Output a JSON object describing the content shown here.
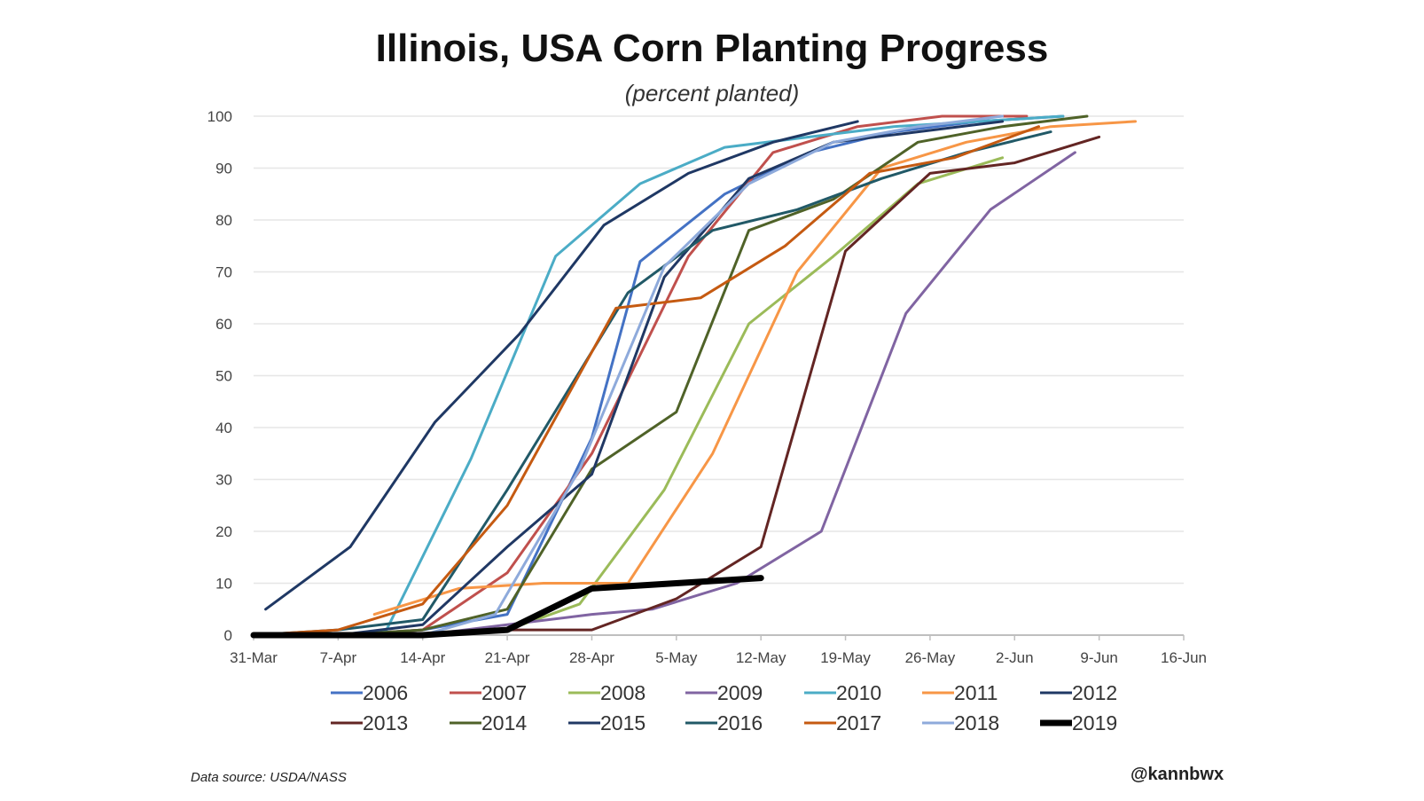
{
  "chart_data": {
    "type": "line",
    "title": "Illinois, USA Corn Planting Progress",
    "subtitle": "(percent planted)",
    "xlabel": "",
    "ylabel": "",
    "x_ticks": [
      "31-Mar",
      "7-Apr",
      "14-Apr",
      "21-Apr",
      "28-Apr",
      "5-May",
      "12-May",
      "19-May",
      "26-May",
      "2-Jun",
      "9-Jun",
      "16-Jun"
    ],
    "xlim": [
      "31-Mar",
      "16-Jun"
    ],
    "ylim": [
      0,
      100
    ],
    "y_ticks": [
      0,
      10,
      20,
      30,
      40,
      50,
      60,
      70,
      80,
      90,
      100
    ],
    "grid": "horizontal",
    "legend_position": "bottom",
    "series": [
      {
        "name": "2006",
        "color": "#4472c4",
        "width": 3,
        "points": [
          [
            "31-Mar",
            0
          ],
          [
            "7-Apr",
            0
          ],
          [
            "14-Apr",
            1
          ],
          [
            "21-Apr",
            4
          ],
          [
            "28-Apr",
            38
          ],
          [
            "2-May",
            72
          ],
          [
            "9-May",
            85
          ],
          [
            "16-May",
            93
          ],
          [
            "23-May",
            97
          ],
          [
            "30-May",
            99
          ],
          [
            "6-Jun",
            100
          ]
        ]
      },
      {
        "name": "2007",
        "color": "#c0504d",
        "width": 3,
        "points": [
          [
            "31-Mar",
            0
          ],
          [
            "7-Apr",
            0
          ],
          [
            "14-Apr",
            1
          ],
          [
            "21-Apr",
            12
          ],
          [
            "28-Apr",
            35
          ],
          [
            "6-May",
            73
          ],
          [
            "13-May",
            93
          ],
          [
            "20-May",
            98
          ],
          [
            "27-May",
            100
          ],
          [
            "3-Jun",
            100
          ]
        ]
      },
      {
        "name": "2008",
        "color": "#9bbb59",
        "width": 3,
        "points": [
          [
            "31-Mar",
            0
          ],
          [
            "7-Apr",
            0
          ],
          [
            "14-Apr",
            0
          ],
          [
            "21-Apr",
            1
          ],
          [
            "27-Apr",
            6
          ],
          [
            "4-May",
            28
          ],
          [
            "11-May",
            60
          ],
          [
            "18-May",
            73
          ],
          [
            "25-May",
            87
          ],
          [
            "1-Jun",
            92
          ]
        ]
      },
      {
        "name": "2009",
        "color": "#8064a2",
        "width": 3,
        "points": [
          [
            "31-Mar",
            0
          ],
          [
            "7-Apr",
            0
          ],
          [
            "14-Apr",
            0
          ],
          [
            "21-Apr",
            2
          ],
          [
            "28-Apr",
            4
          ],
          [
            "3-May",
            5
          ],
          [
            "10-May",
            10
          ],
          [
            "17-May",
            20
          ],
          [
            "24-May",
            62
          ],
          [
            "31-May",
            82
          ],
          [
            "7-Jun",
            93
          ]
        ]
      },
      {
        "name": "2010",
        "color": "#4bacc6",
        "width": 3,
        "points": [
          [
            "31-Mar",
            0
          ],
          [
            "7-Apr",
            0
          ],
          [
            "11-Apr",
            1
          ],
          [
            "18-Apr",
            34
          ],
          [
            "25-Apr",
            73
          ],
          [
            "2-May",
            87
          ],
          [
            "9-May",
            94
          ],
          [
            "16-May",
            96
          ],
          [
            "23-May",
            98
          ],
          [
            "30-May",
            99
          ],
          [
            "6-Jun",
            100
          ]
        ]
      },
      {
        "name": "2011",
        "color": "#f79646",
        "width": 3,
        "points": [
          [
            "10-Apr",
            4
          ],
          [
            "17-Apr",
            9
          ],
          [
            "24-Apr",
            10
          ],
          [
            "1-May",
            10
          ],
          [
            "8-May",
            35
          ],
          [
            "15-May",
            70
          ],
          [
            "22-May",
            90
          ],
          [
            "29-May",
            95
          ],
          [
            "5-Jun",
            98
          ],
          [
            "12-Jun",
            99
          ]
        ]
      },
      {
        "name": "2012",
        "color": "#1f3864",
        "width": 3,
        "points": [
          [
            "1-Apr",
            5
          ],
          [
            "8-Apr",
            17
          ],
          [
            "15-Apr",
            41
          ],
          [
            "22-Apr",
            58
          ],
          [
            "29-Apr",
            79
          ],
          [
            "6-May",
            89
          ],
          [
            "13-May",
            95
          ],
          [
            "20-May",
            99
          ]
        ]
      },
      {
        "name": "2013",
        "color": "#632523",
        "width": 3,
        "points": [
          [
            "31-Mar",
            0
          ],
          [
            "7-Apr",
            0
          ],
          [
            "14-Apr",
            0
          ],
          [
            "21-Apr",
            1
          ],
          [
            "28-Apr",
            1
          ],
          [
            "5-May",
            7
          ],
          [
            "12-May",
            17
          ],
          [
            "19-May",
            74
          ],
          [
            "26-May",
            89
          ],
          [
            "2-Jun",
            91
          ],
          [
            "9-Jun",
            96
          ]
        ]
      },
      {
        "name": "2014",
        "color": "#4f6228",
        "width": 3,
        "points": [
          [
            "31-Mar",
            0
          ],
          [
            "7-Apr",
            0
          ],
          [
            "14-Apr",
            1
          ],
          [
            "21-Apr",
            5
          ],
          [
            "28-Apr",
            32
          ],
          [
            "5-May",
            43
          ],
          [
            "11-May",
            78
          ],
          [
            "18-May",
            84
          ],
          [
            "25-May",
            95
          ],
          [
            "1-Jun",
            98
          ],
          [
            "8-Jun",
            100
          ]
        ]
      },
      {
        "name": "2015",
        "color": "#203864",
        "width": 3,
        "points": [
          [
            "31-Mar",
            0
          ],
          [
            "7-Apr",
            0
          ],
          [
            "14-Apr",
            2
          ],
          [
            "21-Apr",
            17
          ],
          [
            "28-Apr",
            31
          ],
          [
            "4-May",
            69
          ],
          [
            "11-May",
            88
          ],
          [
            "18-May",
            95
          ],
          [
            "25-May",
            97
          ],
          [
            "1-Jun",
            99
          ]
        ]
      },
      {
        "name": "2016",
        "color": "#215967",
        "width": 3,
        "points": [
          [
            "31-Mar",
            0
          ],
          [
            "7-Apr",
            1
          ],
          [
            "14-Apr",
            3
          ],
          [
            "21-Apr",
            28
          ],
          [
            "1-May",
            66
          ],
          [
            "8-May",
            78
          ],
          [
            "15-May",
            82
          ],
          [
            "22-May",
            88
          ],
          [
            "29-May",
            93
          ],
          [
            "5-Jun",
            97
          ]
        ]
      },
      {
        "name": "2017",
        "color": "#c55a11",
        "width": 3,
        "points": [
          [
            "31-Mar",
            0
          ],
          [
            "7-Apr",
            1
          ],
          [
            "14-Apr",
            6
          ],
          [
            "21-Apr",
            25
          ],
          [
            "30-Apr",
            63
          ],
          [
            "7-May",
            65
          ],
          [
            "14-May",
            75
          ],
          [
            "21-May",
            89
          ],
          [
            "28-May",
            92
          ],
          [
            "4-Jun",
            98
          ]
        ]
      },
      {
        "name": "2018",
        "color": "#8eaadb",
        "width": 3,
        "points": [
          [
            "31-Mar",
            0
          ],
          [
            "7-Apr",
            0
          ],
          [
            "14-Apr",
            0
          ],
          [
            "20-Apr",
            4
          ],
          [
            "27-Apr",
            32
          ],
          [
            "4-May",
            71
          ],
          [
            "11-May",
            87
          ],
          [
            "18-May",
            95
          ],
          [
            "25-May",
            98
          ],
          [
            "1-Jun",
            100
          ]
        ]
      },
      {
        "name": "2019",
        "color": "#000000",
        "width": 7,
        "points": [
          [
            "31-Mar",
            0
          ],
          [
            "7-Apr",
            0
          ],
          [
            "14-Apr",
            0
          ],
          [
            "21-Apr",
            1
          ],
          [
            "28-Apr",
            9
          ],
          [
            "5-May",
            10
          ],
          [
            "12-May",
            11
          ]
        ]
      }
    ]
  },
  "footer": {
    "source": "Data source: USDA/NASS",
    "handle": "@kannbwx"
  }
}
